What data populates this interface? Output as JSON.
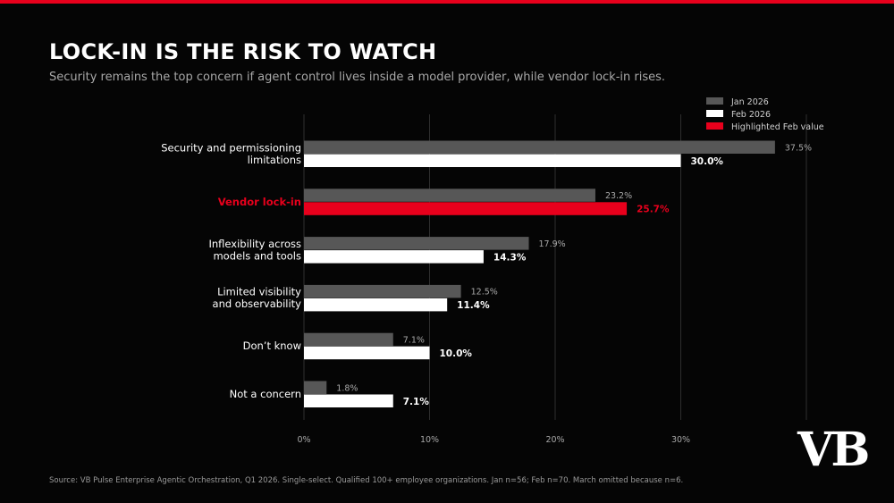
{
  "header": {
    "title": "LOCK-IN IS THE RISK TO WATCH",
    "subtitle": "Security remains the top concern if agent control lives inside a model provider, while vendor lock-in rises."
  },
  "footer": {
    "source": "Source: VB Pulse Enterprise Agentic Orchestration, Q1 2026. Single-select. Qualified 100+ employee organizations. Jan n=56; Feb n=70. March omitted because n=6."
  },
  "brand": {
    "logo_text": "VB"
  },
  "colors": {
    "accent": "#e8001c",
    "jan_bar": "#575757",
    "feb_bar": "#ffffff",
    "grid": "#2e2e2e",
    "tick_text": "#a8a8a8"
  },
  "chart_data": {
    "type": "bar",
    "orientation": "horizontal",
    "title": "LOCK-IN IS THE RISK TO WATCH",
    "subtitle": "Security remains the top concern if agent control lives inside a model provider, while vendor lock-in rises.",
    "categories": [
      [
        "Security and permissioning",
        "limitations"
      ],
      [
        "Vendor lock-in"
      ],
      [
        "Inflexibility across",
        "models and tools"
      ],
      [
        "Limited visibility",
        "and observability"
      ],
      [
        "Don’t know"
      ],
      [
        "Not a concern"
      ]
    ],
    "highlight_category_index": 1,
    "series": [
      {
        "name": "Jan 2026",
        "values": [
          37.5,
          23.2,
          17.9,
          12.5,
          7.1,
          1.8
        ],
        "labels": [
          "37.5%",
          "23.2%",
          "17.9%",
          "12.5%",
          "7.1%",
          "1.8%"
        ]
      },
      {
        "name": "Feb 2026",
        "values": [
          30.0,
          25.7,
          14.3,
          11.4,
          10.0,
          7.1
        ],
        "labels": [
          "30.0%",
          "25.7%",
          "14.3%",
          "11.4%",
          "10.0%",
          "7.1%"
        ]
      }
    ],
    "legend": {
      "placement": "top-right",
      "entries": [
        "Jan 2026",
        "Feb 2026",
        "Highlighted Feb value"
      ]
    },
    "xlim": [
      0,
      40
    ],
    "xticks": [
      0,
      10,
      20,
      30
    ],
    "xtick_labels": [
      "0%",
      "10%",
      "20%",
      "30%"
    ],
    "grid": true,
    "xlabel": "",
    "ylabel": ""
  }
}
